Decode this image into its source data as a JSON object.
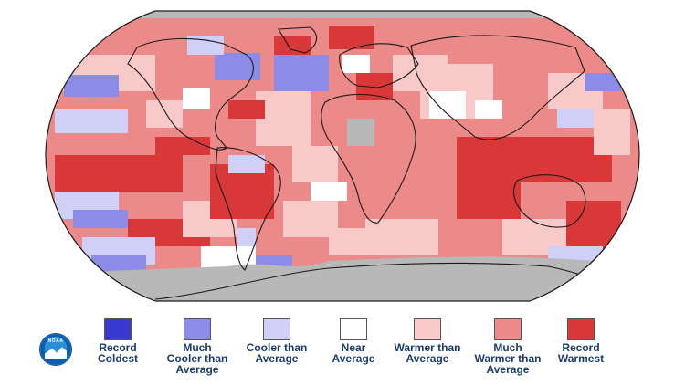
{
  "map": {
    "name": "global-temperature-anomaly-map",
    "ocean_land_outline_color": "#1a1a1a",
    "no_data_color": "#b8b8b8"
  },
  "logo": {
    "text": "NOAA",
    "icon": "noaa-logo-icon"
  },
  "legend": [
    {
      "key": "record-coldest",
      "label": "Record\nColdest",
      "color": "#3a3ad0"
    },
    {
      "key": "much-cooler",
      "label": "Much\nCooler than\nAverage",
      "color": "#8c8ce8"
    },
    {
      "key": "cooler",
      "label": "Cooler than\nAverage",
      "color": "#cfcff8"
    },
    {
      "key": "near",
      "label": "Near\nAverage",
      "color": "#ffffff"
    },
    {
      "key": "warmer",
      "label": "Warmer than\nAverage",
      "color": "#f8c9c9"
    },
    {
      "key": "much-warmer",
      "label": "Much\nWarmer than\nAverage",
      "color": "#ec8a8a"
    },
    {
      "key": "record-warmest",
      "label": "Record\nWarmest",
      "color": "#d83838"
    }
  ]
}
